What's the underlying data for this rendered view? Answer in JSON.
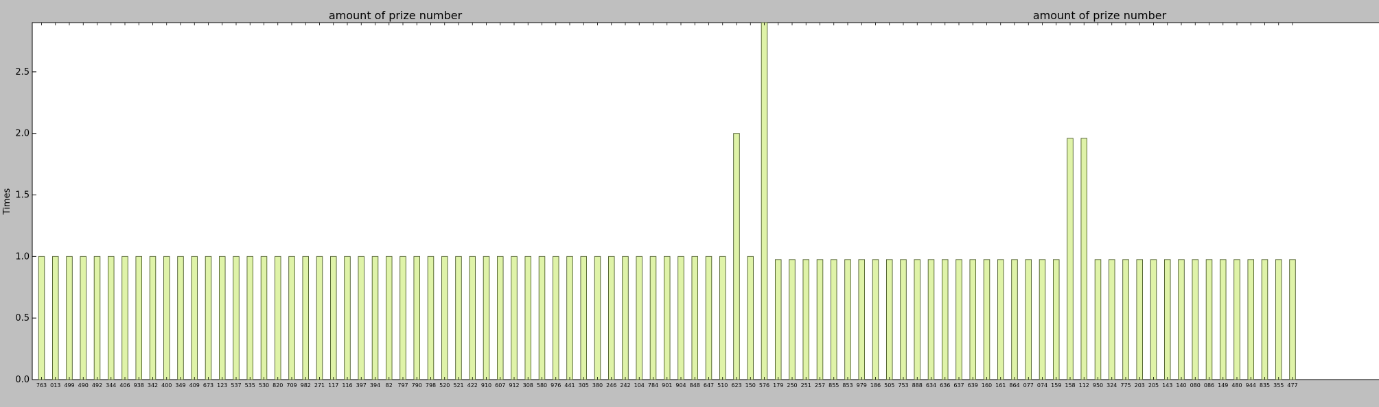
{
  "chart_data": {
    "type": "bar",
    "titles": [
      "amount of prize number",
      "amount of prize number"
    ],
    "ylabel": "Times",
    "ylim": [
      0,
      2.9
    ],
    "yticks": [
      "0.0",
      "0.5",
      "1.0",
      "1.5",
      "2.0",
      "2.5"
    ],
    "yticks_values": [
      0,
      0.5,
      1.0,
      1.5,
      2.0,
      2.5
    ],
    "grid": false,
    "bar_color": "#dff3a8",
    "bar_edge": "#4a5a2a",
    "categories": [
      "763",
      "013",
      "499",
      "490",
      "492",
      "344",
      "406",
      "938",
      "342",
      "400",
      "349",
      "409",
      "673",
      "123",
      "537",
      "535",
      "530",
      "820",
      "709",
      "982",
      "271",
      "117",
      "116",
      "397",
      "394",
      "82",
      "797",
      "790",
      "798",
      "520",
      "521",
      "422",
      "910",
      "607",
      "912",
      "308",
      "580",
      "976",
      "441",
      "305",
      "380",
      "246",
      "242",
      "104",
      "784",
      "901",
      "904",
      "848",
      "647",
      "510",
      "623",
      "150",
      "576",
      "179",
      "250",
      "251",
      "257",
      "855",
      "853",
      "979",
      "186",
      "505",
      "753",
      "888",
      "634",
      "636",
      "637",
      "639",
      "160",
      "161",
      "864",
      "077",
      "074",
      "159",
      "158",
      "112",
      "950",
      "324",
      "775",
      "203",
      "205",
      "143",
      "140",
      "080",
      "086",
      "149",
      "480",
      "944",
      "835",
      "355",
      "477"
    ],
    "values": [
      1,
      1,
      1,
      1,
      1,
      1,
      1,
      1,
      1,
      1,
      1,
      1,
      1,
      1,
      1,
      1,
      1,
      1,
      1,
      1,
      1,
      1,
      1,
      1,
      1,
      1,
      1,
      1,
      1,
      1,
      1,
      1,
      1,
      1,
      1,
      1,
      1,
      1,
      1,
      1,
      1,
      1,
      1,
      1,
      1,
      1,
      1,
      1,
      1,
      1,
      2,
      1,
      3,
      0.975,
      0.975,
      0.975,
      0.975,
      0.975,
      0.975,
      0.975,
      0.975,
      0.975,
      0.975,
      0.975,
      0.975,
      0.975,
      0.975,
      0.975,
      0.975,
      0.975,
      0.975,
      0.975,
      0.975,
      0.975,
      1.96,
      1.96,
      0.975,
      0.975,
      0.975,
      0.975,
      0.975,
      0.975,
      0.975,
      0.975,
      0.975,
      0.975,
      0.975,
      0.975,
      0.975,
      0.975,
      0.975
    ]
  }
}
